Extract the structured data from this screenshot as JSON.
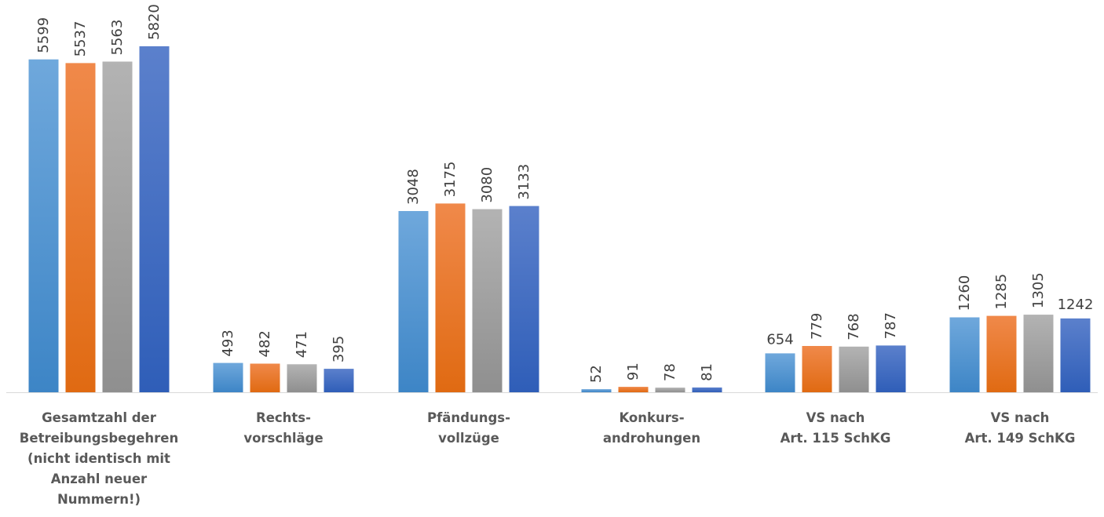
{
  "chart_data": {
    "type": "bar",
    "categories": [
      [
        "Gesamtzahl der",
        "Betreibungsbegehren",
        "(nicht identisch mit",
        "Anzahl neuer",
        "Nummern!)"
      ],
      [
        "Rechts-",
        "vorschläge"
      ],
      [
        "Pfändungs-",
        "vollzüge"
      ],
      [
        "Konkurs-",
        "androhungen"
      ],
      [
        "VS nach",
        "Art. 115 SchKG"
      ],
      [
        "VS nach",
        "Art. 149 SchKG"
      ]
    ],
    "series": [
      {
        "values": [
          5599,
          493,
          3048,
          52,
          654,
          1260
        ],
        "color": "#5b9bd5"
      },
      {
        "values": [
          5537,
          482,
          3175,
          91,
          779,
          1285
        ],
        "color": "#ed7d31"
      },
      {
        "values": [
          5563,
          471,
          3080,
          78,
          768,
          1305
        ],
        "color": "#a5a5a5"
      },
      {
        "values": [
          5820,
          395,
          3133,
          81,
          787,
          1242
        ],
        "color": "#4472c4"
      }
    ],
    "ylim": [
      0,
      5820
    ],
    "grid": false,
    "data_labels": true,
    "label_rotation": "vertical-when-crowded"
  }
}
